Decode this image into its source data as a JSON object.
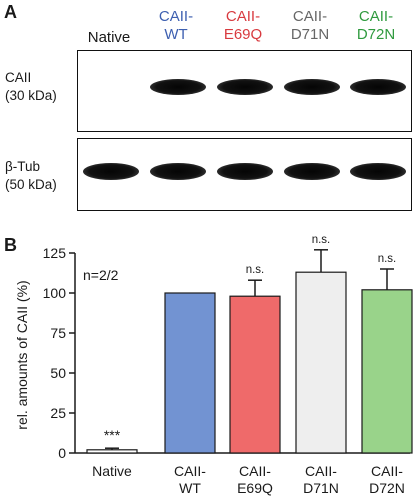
{
  "panel_a": {
    "label": "A",
    "lanes": [
      {
        "line1": "Native",
        "line2": "",
        "color": "#111111"
      },
      {
        "line1": "CAII-",
        "line2": "WT",
        "color": "#3d5fb0"
      },
      {
        "line1": "CAII-",
        "line2": "E69Q",
        "color": "#d83a3f"
      },
      {
        "line1": "CAII-",
        "line2": "D71N",
        "color": "#666666"
      },
      {
        "line1": "CAII-",
        "line2": "D72N",
        "color": "#2f9a3e"
      }
    ],
    "blots": [
      {
        "name": "CAII",
        "size": "(30 kDa)",
        "bands_present": [
          false,
          true,
          true,
          true,
          true
        ]
      },
      {
        "name": "β-Tub",
        "size": "(50 kDa)",
        "bands_present": [
          true,
          true,
          true,
          true,
          true
        ]
      }
    ]
  },
  "panel_b": {
    "label": "B",
    "annotation": "n=2/2"
  },
  "chart_data": {
    "type": "bar",
    "ylabel": "rel. amounts of CAII (%)",
    "ylim": [
      0,
      125
    ],
    "yticks": [
      0,
      25,
      50,
      75,
      100,
      125
    ],
    "categories": [
      {
        "line1": "Native",
        "line2": ""
      },
      {
        "line1": "CAII-",
        "line2": "WT"
      },
      {
        "line1": "CAII-",
        "line2": "E69Q"
      },
      {
        "line1": "CAII-",
        "line2": "D71N"
      },
      {
        "line1": "CAII-",
        "line2": "D72N"
      }
    ],
    "values": [
      2,
      100,
      98,
      113,
      102
    ],
    "errors": [
      1,
      0,
      10,
      14,
      13
    ],
    "significance": [
      "***",
      "",
      "n.s.",
      "n.s.",
      "n.s."
    ],
    "colors": [
      "#ffffff",
      "#7293d2",
      "#ef6a6a",
      "#eeeeee",
      "#99d38a"
    ]
  }
}
